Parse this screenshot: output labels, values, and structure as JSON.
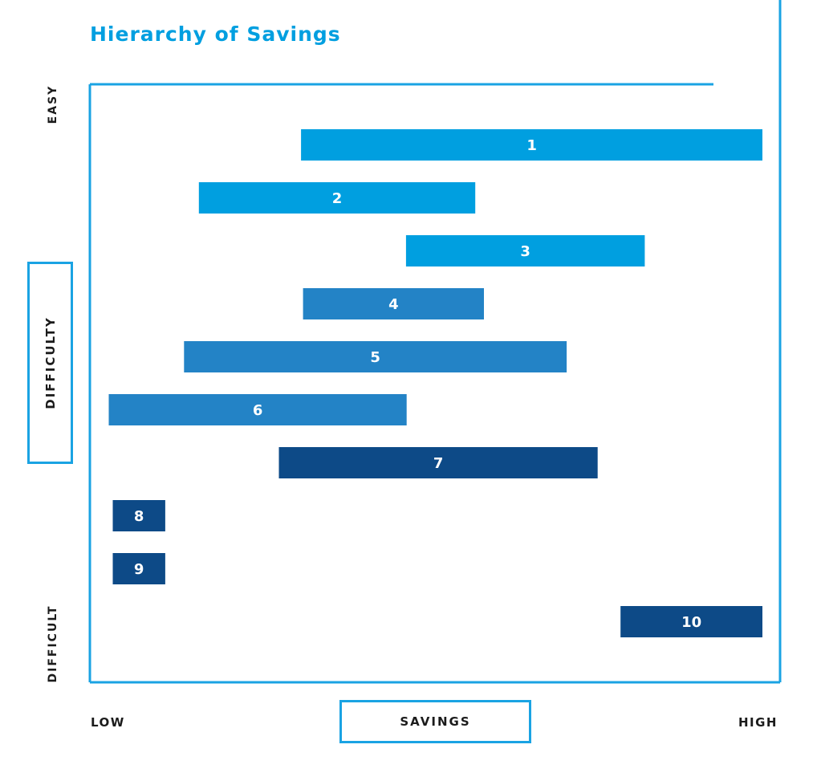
{
  "chart_data": {
    "type": "bar",
    "orientation": "horizontal-range",
    "title": "Hierarchy of Savings",
    "xlabel": "SAVINGS",
    "ylabel": "DIFFICULTY",
    "x_tick_labels": {
      "low": "LOW",
      "high": "HIGH"
    },
    "y_tick_labels": {
      "top": "EASY",
      "bottom": "DIFFICULT"
    },
    "xlim": [
      0,
      100
    ],
    "grid": false,
    "bars": [
      {
        "label": "1",
        "start": 31.4,
        "end": 100.0,
        "color": "#009fe0"
      },
      {
        "label": "2",
        "start": 16.2,
        "end": 57.3,
        "color": "#009fe0"
      },
      {
        "label": "3",
        "start": 47.0,
        "end": 82.5,
        "color": "#009fe0"
      },
      {
        "label": "4",
        "start": 31.7,
        "end": 58.6,
        "color": "#2383c6"
      },
      {
        "label": "5",
        "start": 14.0,
        "end": 70.9,
        "color": "#2383c6"
      },
      {
        "label": "6",
        "start": 2.8,
        "end": 47.1,
        "color": "#2383c6"
      },
      {
        "label": "7",
        "start": 28.1,
        "end": 75.5,
        "color": "#0d4a87"
      },
      {
        "label": "8",
        "start": 3.4,
        "end": 11.2,
        "color": "#0d4a87"
      },
      {
        "label": "9",
        "start": 3.4,
        "end": 11.2,
        "color": "#0d4a87"
      },
      {
        "label": "10",
        "start": 78.9,
        "end": 100.0,
        "color": "#0d4a87"
      }
    ],
    "frame_color": "#1aa3e3"
  }
}
